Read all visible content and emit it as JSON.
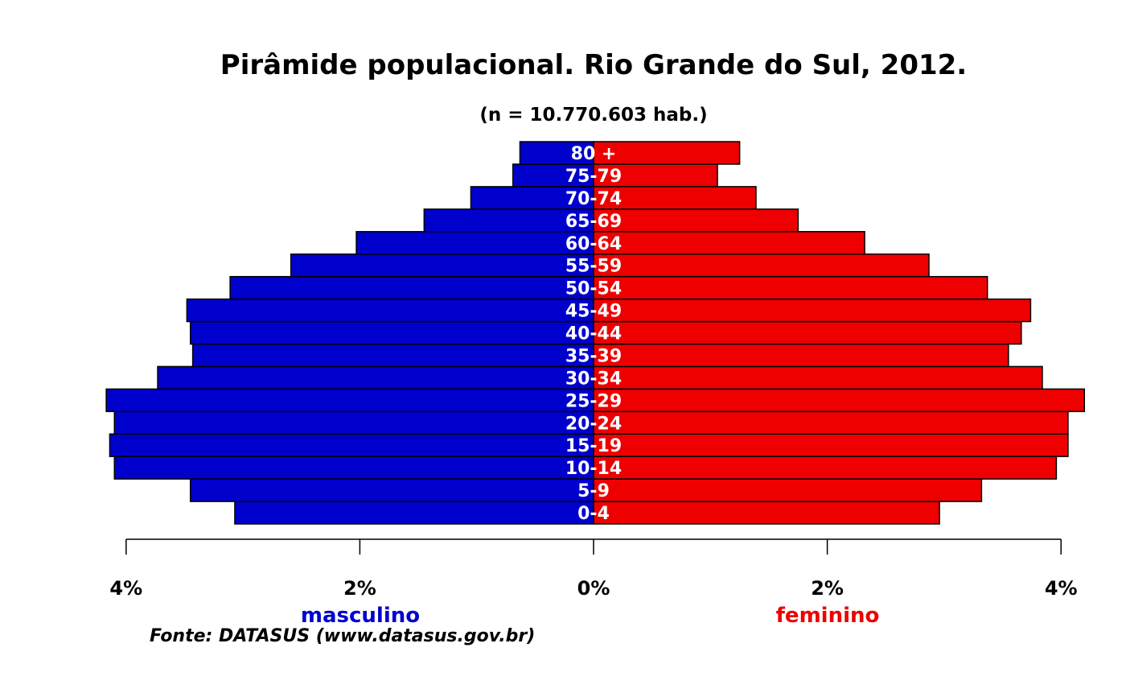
{
  "chart_data": {
    "type": "bar",
    "orientation": "horizontal-population-pyramid",
    "title": "Pirâmide populacional.  Rio Grande do Sul,  2012.",
    "subtitle": "(n = 10.770.603 hab.)",
    "categories": [
      "0-4",
      "5-9",
      "10-14",
      "15-19",
      "20-24",
      "25-29",
      "30-34",
      "35-39",
      "40-44",
      "45-49",
      "50-54",
      "55-59",
      "60-64",
      "65-69",
      "70-74",
      "75-79",
      "80 +"
    ],
    "series": [
      {
        "name": "masculino",
        "color": "#0000cc",
        "values": [
          3.07,
          3.45,
          4.1,
          4.14,
          4.1,
          4.17,
          3.73,
          3.43,
          3.45,
          3.48,
          3.11,
          2.59,
          2.03,
          1.45,
          1.05,
          0.69,
          0.63
        ]
      },
      {
        "name": "feminino",
        "color": "#ee0000",
        "values": [
          2.96,
          3.32,
          3.96,
          4.06,
          4.06,
          4.2,
          3.84,
          3.55,
          3.66,
          3.74,
          3.37,
          2.87,
          2.32,
          1.75,
          1.39,
          1.06,
          1.25
        ]
      }
    ],
    "xlim": [
      -4.2,
      4.2
    ],
    "ticks": [
      {
        "value": -4,
        "label": "4%"
      },
      {
        "value": -2,
        "label": "2%"
      },
      {
        "value": 0,
        "label": "0%"
      },
      {
        "value": 2,
        "label": "2%"
      },
      {
        "value": 4,
        "label": "4%"
      }
    ],
    "left_label": "masculino",
    "right_label": "feminino",
    "source": "Fonte: DATASUS (www.datasus.gov.br)"
  }
}
